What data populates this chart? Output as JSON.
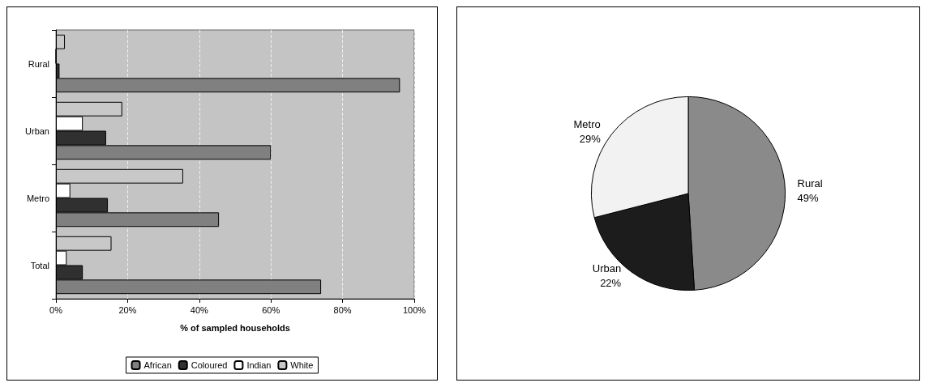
{
  "chart_data": [
    {
      "type": "bar",
      "orientation": "horizontal",
      "categories": [
        "Rural",
        "Urban",
        "Metro",
        "Total"
      ],
      "xlabel": "% of sampled households",
      "xlim": [
        0,
        100
      ],
      "xticks": [
        {
          "value": 0,
          "label": "0%"
        },
        {
          "value": 20,
          "label": "20%"
        },
        {
          "value": 40,
          "label": "40%"
        },
        {
          "value": 60,
          "label": "60%"
        },
        {
          "value": 80,
          "label": "80%"
        },
        {
          "value": 100,
          "label": "100%"
        }
      ],
      "grid": "x",
      "legend": "bottom",
      "series": [
        {
          "name": "African",
          "color": "#808080",
          "values": [
            96,
            60,
            45.5,
            74
          ]
        },
        {
          "name": "Coloured",
          "color": "#303030",
          "values": [
            1,
            14,
            14.5,
            7.5
          ]
        },
        {
          "name": "Indian",
          "color": "#ffffff",
          "values": [
            0,
            7.5,
            4,
            3
          ]
        },
        {
          "name": "White",
          "color": "#c8c8c8",
          "values": [
            2.5,
            18.5,
            35.5,
            15.5
          ]
        }
      ]
    },
    {
      "type": "pie",
      "categories": [
        "Rural",
        "Urban",
        "Metro"
      ],
      "values": [
        49,
        22,
        29
      ],
      "value_labels": [
        "49%",
        "22%",
        "29%"
      ],
      "colors": [
        "#8a8a8a",
        "#1c1c1c",
        "#f2f2f2"
      ],
      "legend": false
    }
  ]
}
